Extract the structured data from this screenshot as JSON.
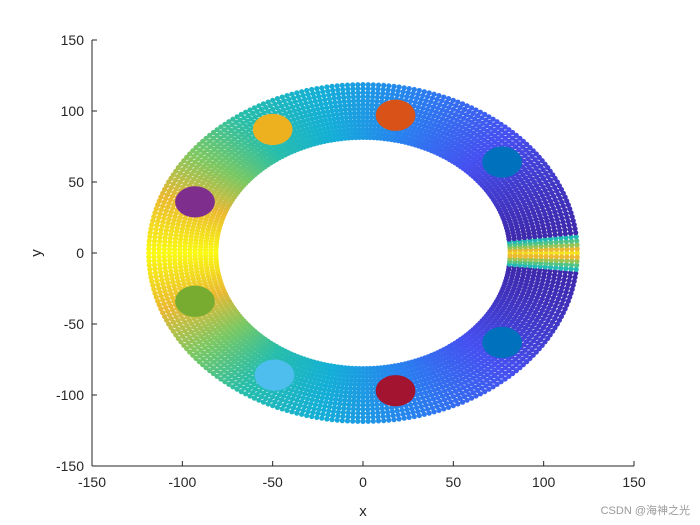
{
  "chart_data": {
    "type": "scatter",
    "xlabel": "x",
    "ylabel": "y",
    "xlim": [
      -150,
      150
    ],
    "ylim": [
      -150,
      150
    ],
    "xticks": [
      -150,
      -100,
      -50,
      0,
      50,
      100,
      150
    ],
    "yticks": [
      -150,
      -100,
      -50,
      0,
      50,
      100,
      150
    ],
    "grid": false,
    "ring": {
      "center": [
        0,
        0
      ],
      "outer_semi_axes": [
        120,
        120
      ],
      "inner_semi_axes": [
        80,
        80
      ],
      "colormap": "parula",
      "color_by": "distance to nearest electrode",
      "pinch_point": [
        100,
        0
      ]
    },
    "electrodes": [
      {
        "x": 18,
        "y": 97,
        "color": "#D95319"
      },
      {
        "x": -50,
        "y": 87,
        "color": "#EDB120"
      },
      {
        "x": 77,
        "y": 64,
        "color": "#0072BD"
      },
      {
        "x": -93,
        "y": 36,
        "color": "#7E2F8E"
      },
      {
        "x": -93,
        "y": -34,
        "color": "#77AC30"
      },
      {
        "x": 77,
        "y": -63,
        "color": "#0072BD"
      },
      {
        "x": -49,
        "y": -86,
        "color": "#4DBEEE"
      },
      {
        "x": 18,
        "y": -97,
        "color": "#A2142F"
      }
    ],
    "electrode_radius": 11
  },
  "watermark": "CSDN @海神之光"
}
